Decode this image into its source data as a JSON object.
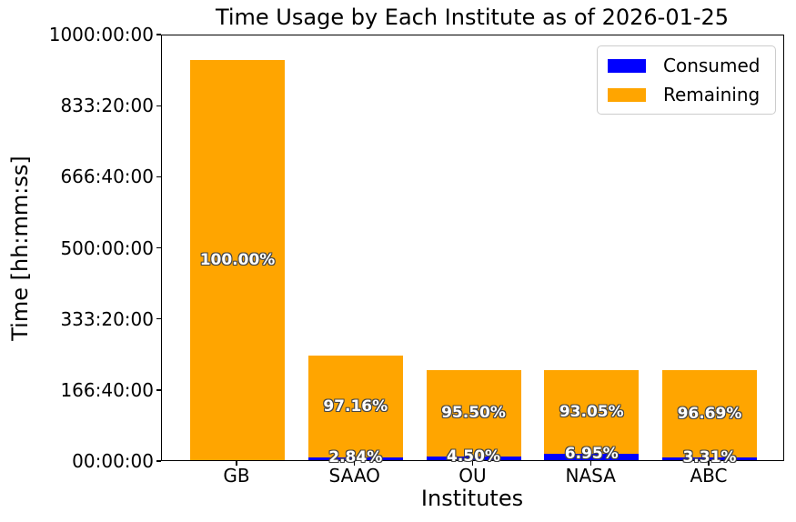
{
  "chart_data": {
    "type": "bar",
    "stacked": true,
    "title": "Time Usage by Each Institute as of 2026-01-25",
    "xlabel": "Institutes",
    "ylabel": "Time [hh:mm:ss]",
    "categories": [
      "GB",
      "SAAO",
      "OU",
      "NASA",
      "ABC"
    ],
    "bar_totals_hours_est": [
      939,
      246,
      211,
      211,
      211
    ],
    "series": [
      {
        "name": "Consumed",
        "color": "#0000ff",
        "pct_of_bar": [
          0.0,
          2.84,
          4.5,
          6.95,
          3.31
        ],
        "labels": [
          "",
          "2.84%",
          "4.50%",
          "6.95%",
          "3.31%"
        ]
      },
      {
        "name": "Remaining",
        "color": "#ffa500",
        "pct_of_bar": [
          100.0,
          97.16,
          95.5,
          93.05,
          96.69
        ],
        "labels": [
          "100.00%",
          "97.16%",
          "95.50%",
          "93.05%",
          "96.69%"
        ]
      }
    ],
    "ylim_hours": [
      0,
      1000
    ],
    "ytick_labels": [
      "00:00:00",
      "166:40:00",
      "333:20:00",
      "500:00:00",
      "666:40:00",
      "833:20:00",
      "1000:00:00"
    ],
    "grid": false,
    "legend": {
      "position": "upper right",
      "entries": [
        {
          "label": "Consumed",
          "color": "#0000ff"
        },
        {
          "label": "Remaining",
          "color": "#ffa500"
        }
      ]
    }
  }
}
